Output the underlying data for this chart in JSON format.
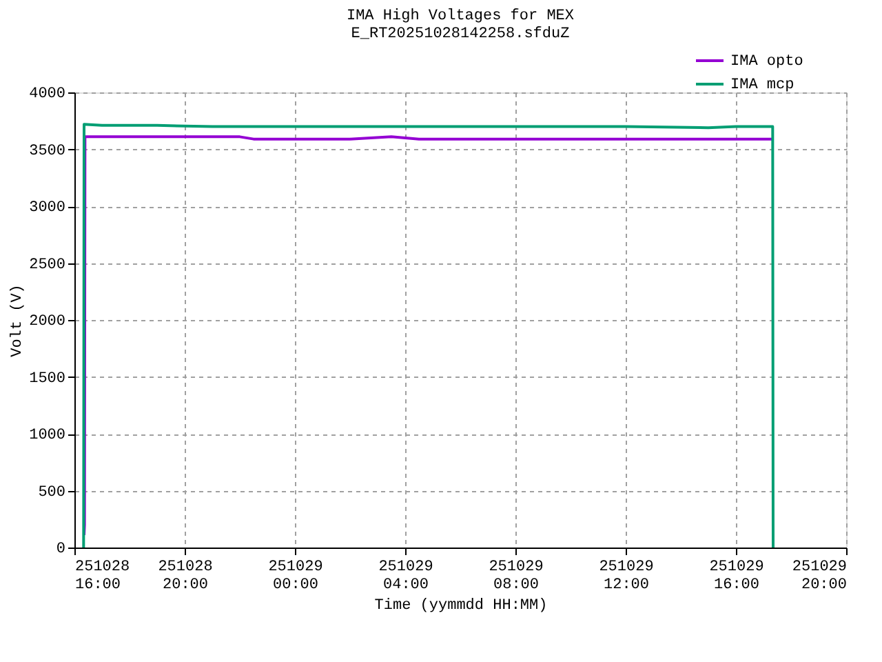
{
  "chart_data": {
    "type": "line",
    "title": "IMA High Voltages for MEX",
    "subtitle": "E_RT20251028142258.sfduZ",
    "xlabel": "Time (yymmdd HH:MM)",
    "ylabel": "Volt (V)",
    "xlim": [
      "2025-10-28T16:00",
      "2025-10-29T20:00"
    ],
    "xticks": [
      {
        "value": "2025-10-28T16:00",
        "label": "251028\n16:00"
      },
      {
        "value": "2025-10-28T20:00",
        "label": "251028\n20:00"
      },
      {
        "value": "2025-10-29T00:00",
        "label": "251029\n00:00"
      },
      {
        "value": "2025-10-29T04:00",
        "label": "251029\n04:00"
      },
      {
        "value": "2025-10-29T08:00",
        "label": "251029\n08:00"
      },
      {
        "value": "2025-10-29T12:00",
        "label": "251029\n12:00"
      },
      {
        "value": "2025-10-29T16:00",
        "label": "251029\n16:00"
      },
      {
        "value": "2025-10-29T20:00",
        "label": "251029\n20:00"
      }
    ],
    "ylim": [
      0,
      4000
    ],
    "yticks": [
      0,
      500,
      1000,
      1500,
      2000,
      2500,
      3000,
      3500,
      4000
    ],
    "grid": true,
    "legend": "top right",
    "line_style": "solid",
    "marker": "none",
    "series": [
      {
        "name": "IMA opto",
        "color": "#9400d3",
        "x": [
          "2025-10-28T16:21",
          "2025-10-28T16:22",
          "2025-10-28T16:23",
          "2025-10-28T18:00",
          "2025-10-28T22:00",
          "2025-10-28T22:30",
          "2025-10-29T02:00",
          "2025-10-29T03:30",
          "2025-10-29T04:30",
          "2025-10-29T08:00",
          "2025-10-29T12:00",
          "2025-10-29T17:20"
        ],
        "values": [
          110,
          200,
          3610,
          3610,
          3610,
          3590,
          3590,
          3610,
          3590,
          3590,
          3590,
          3590
        ]
      },
      {
        "name": "IMA mcp",
        "color": "#009e73",
        "x": [
          "2025-10-28T16:20",
          "2025-10-28T16:21",
          "2025-10-28T17:00",
          "2025-10-28T18:00",
          "2025-10-28T19:00",
          "2025-10-28T21:00",
          "2025-10-29T00:00",
          "2025-10-29T04:00",
          "2025-10-29T08:00",
          "2025-10-29T12:00",
          "2025-10-29T15:00",
          "2025-10-29T16:00",
          "2025-10-29T17:20",
          "2025-10-29T17:21"
        ],
        "values": [
          0,
          3720,
          3710,
          3710,
          3710,
          3700,
          3700,
          3700,
          3700,
          3700,
          3690,
          3700,
          3700,
          0
        ]
      }
    ]
  }
}
